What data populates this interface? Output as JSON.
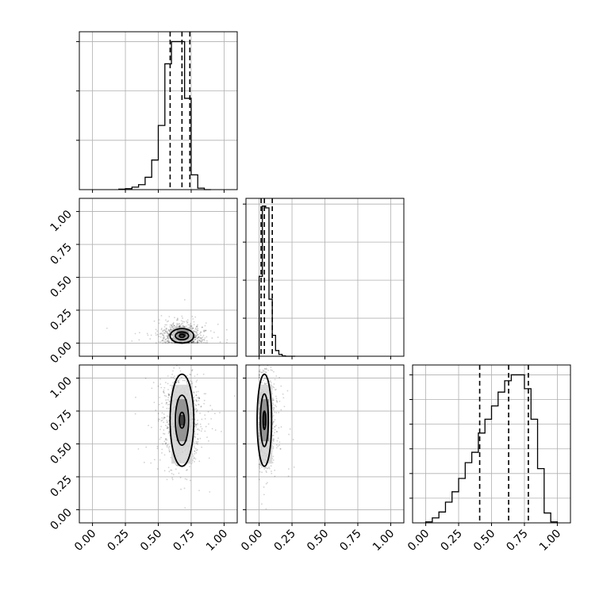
{
  "colors": {
    "line": "#000000",
    "grid": "#b0b0b0",
    "background": "#ffffff",
    "scatter": "#000000"
  },
  "chart_data": {
    "type": "corner",
    "title": "",
    "grid": true,
    "tick_labels": [
      "0.00",
      "0.25",
      "0.50",
      "0.75",
      "1.00"
    ],
    "tick_values": [
      0,
      0.25,
      0.5,
      0.75,
      1.0
    ],
    "range": [
      -0.1,
      1.1
    ],
    "dimensions": [
      {
        "name": "",
        "histogram": {
          "bin_edges": [
            0.2,
            0.25,
            0.3,
            0.35,
            0.4,
            0.45,
            0.5,
            0.55,
            0.6,
            0.65,
            0.7,
            0.75,
            0.8,
            0.85,
            0.9
          ],
          "counts": [
            1,
            2,
            5,
            10,
            25,
            60,
            130,
            255,
            300,
            300,
            185,
            30,
            3,
            0
          ],
          "ymax": 320,
          "yticks": [
            100,
            200,
            300
          ]
        },
        "quantiles": [
          0.59,
          0.68,
          0.74
        ]
      },
      {
        "name": "",
        "histogram": {
          "bin_edges": [
            0.0,
            0.025,
            0.05,
            0.075,
            0.1,
            0.125,
            0.15,
            0.175,
            0.2,
            0.225,
            0.25,
            0.275
          ],
          "counts": [
            420,
            790,
            780,
            300,
            110,
            30,
            10,
            2,
            0,
            0,
            0
          ],
          "ymax": 830,
          "yticks": [
            200,
            400,
            600,
            800
          ]
        },
        "quantiles": [
          0.015,
          0.04,
          0.1
        ]
      },
      {
        "name": "",
        "histogram": {
          "bin_edges": [
            0.0,
            0.05,
            0.1,
            0.15,
            0.2,
            0.25,
            0.3,
            0.35,
            0.4,
            0.45,
            0.5,
            0.55,
            0.6,
            0.65,
            0.7,
            0.75,
            0.8,
            0.85,
            0.9,
            0.95,
            1.0
          ],
          "counts": [
            2,
            10,
            22,
            42,
            63,
            90,
            122,
            143,
            182,
            210,
            237,
            265,
            288,
            300,
            300,
            272,
            210,
            110,
            20,
            2
          ],
          "ymax": 320,
          "yticks": [
            50,
            100,
            150,
            200,
            250,
            300
          ]
        },
        "quantiles": [
          0.41,
          0.63,
          0.78
        ]
      }
    ],
    "pairs": [
      {
        "x_dim": 0,
        "y_dim": 1,
        "center": [
          0.68,
          0.055
        ],
        "spread": [
          0.07,
          0.045
        ],
        "contour_radii": [
          [
            0.02,
            0.012
          ],
          [
            0.05,
            0.03
          ],
          [
            0.09,
            0.055
          ]
        ],
        "density_cells": [
          {
            "x": 0.66,
            "y": 0.05,
            "w": 0.05,
            "h": 0.03,
            "shade": 0.95
          },
          {
            "x": 0.64,
            "y": 0.03,
            "w": 0.09,
            "h": 0.07,
            "shade": 0.55
          },
          {
            "x": 0.61,
            "y": 0.01,
            "w": 0.15,
            "h": 0.11,
            "shade": 0.25
          }
        ]
      },
      {
        "x_dim": 0,
        "y_dim": 2,
        "center": [
          0.68,
          0.68
        ],
        "spread": [
          0.07,
          0.17
        ],
        "contour_radii": [
          [
            0.02,
            0.06
          ],
          [
            0.05,
            0.19
          ],
          [
            0.09,
            0.35
          ]
        ],
        "density_cells": [
          {
            "x": 0.66,
            "y": 0.64,
            "w": 0.04,
            "h": 0.08,
            "shade": 0.95
          },
          {
            "x": 0.64,
            "y": 0.52,
            "w": 0.08,
            "h": 0.32,
            "shade": 0.55
          },
          {
            "x": 0.6,
            "y": 0.35,
            "w": 0.16,
            "h": 0.6,
            "shade": 0.2
          }
        ]
      },
      {
        "x_dim": 1,
        "y_dim": 2,
        "center": [
          0.04,
          0.68
        ],
        "spread": [
          0.04,
          0.17
        ],
        "contour_radii": [
          [
            0.01,
            0.07
          ],
          [
            0.03,
            0.2
          ],
          [
            0.055,
            0.35
          ]
        ],
        "density_cells": [
          {
            "x": 0.03,
            "y": 0.64,
            "w": 0.025,
            "h": 0.09,
            "shade": 0.95
          },
          {
            "x": 0.015,
            "y": 0.52,
            "w": 0.06,
            "h": 0.32,
            "shade": 0.55
          },
          {
            "x": 0.0,
            "y": 0.35,
            "w": 0.1,
            "h": 0.6,
            "shade": 0.2
          }
        ]
      }
    ]
  }
}
